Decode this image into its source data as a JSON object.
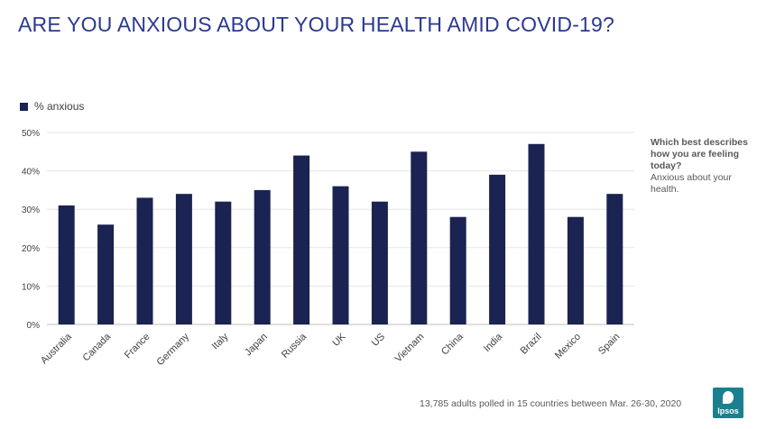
{
  "header": {
    "title": "ARE YOU ANXIOUS ABOUT YOUR HEALTH AMID COVID-19?"
  },
  "side_note": {
    "question": "Which best describes how you are feeling today?",
    "answer": "Anxious about your health."
  },
  "footer": {
    "note": "13,785 adults polled in 15 countries between Mar. 26-30, 2020",
    "logo_text": "Ipsos"
  },
  "colors": {
    "bar": "#1a2351",
    "title": "#2b3990",
    "logo": "#1a7f8e"
  },
  "chart_data": {
    "type": "bar",
    "categories": [
      "Australia",
      "Canada",
      "France",
      "Germany",
      "Italy",
      "Japan",
      "Russia",
      "UK",
      "US",
      "Vietnam",
      "China",
      "India",
      "Brazil",
      "Mexico",
      "Spain"
    ],
    "series": [
      {
        "name": "% anxious",
        "values": [
          31,
          26,
          33,
          34,
          32,
          35,
          44,
          36,
          32,
          45,
          28,
          39,
          47,
          28,
          34
        ]
      }
    ],
    "ylim": [
      0,
      50
    ],
    "yticks": [
      0,
      10,
      20,
      30,
      40,
      50
    ],
    "ytick_labels": [
      "0%",
      "10%",
      "20%",
      "30%",
      "40%",
      "50%"
    ],
    "grid": true,
    "legend_position": "top-left"
  }
}
